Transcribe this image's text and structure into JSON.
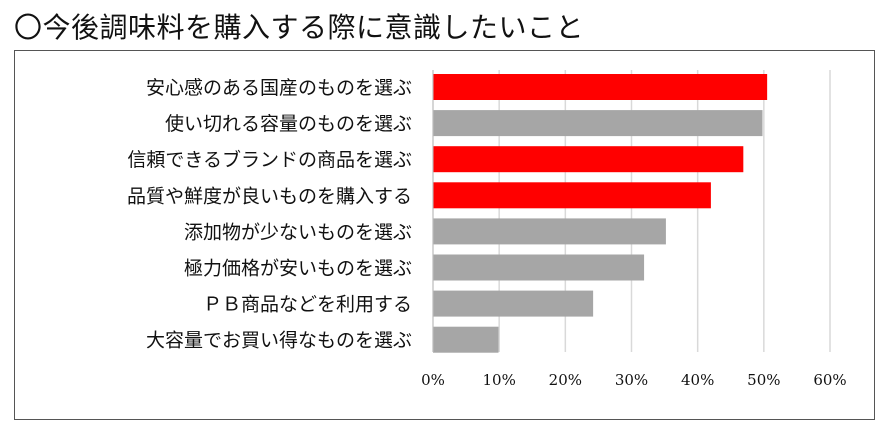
{
  "title": "〇今後調味料を購入する際に意識したいこと",
  "colors": {
    "highlight": "#ff0000",
    "normal": "#a6a6a6",
    "grid": "#d9d9d9"
  },
  "chart_data": {
    "type": "bar",
    "orientation": "horizontal",
    "categories": [
      "安心感のある国産のものを選ぶ",
      "使い切れる容量のものを選ぶ",
      "信頼できるブランドの商品を選ぶ",
      "品質や鮮度が良いものを購入する",
      "添加物が少ないものを選ぶ",
      "極力価格が安いものを選ぶ",
      "ＰＢ商品などを利用する",
      "大容量でお買い得なものを選ぶ"
    ],
    "values": [
      50.5,
      49.8,
      46.9,
      42.0,
      35.2,
      31.9,
      24.2,
      9.9
    ],
    "highlighted": [
      true,
      false,
      true,
      true,
      false,
      false,
      false,
      false
    ],
    "xlim": [
      0,
      60
    ],
    "xticks": [
      "0%",
      "10%",
      "20%",
      "30%",
      "40%",
      "50%",
      "60%"
    ],
    "grid": true,
    "legend": "none"
  }
}
